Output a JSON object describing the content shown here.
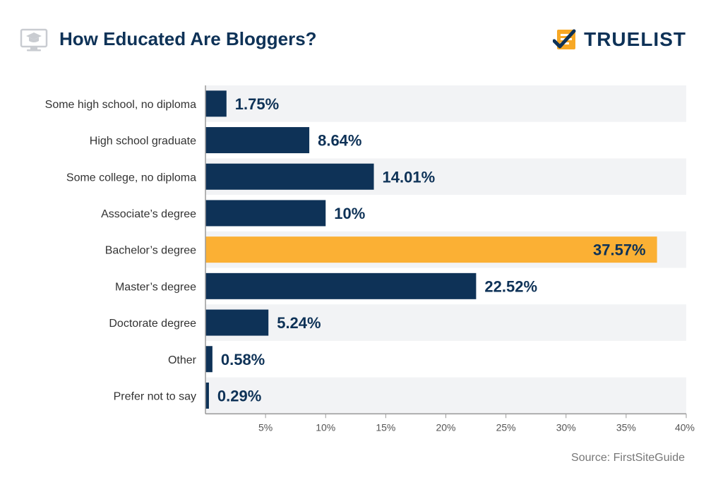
{
  "header": {
    "title": "How Educated Are Bloggers?",
    "title_icon": "graduation-monitor-icon",
    "brand": "TRUELIST",
    "brand_icon": "checklist-logo-icon"
  },
  "footer": {
    "source": "Source: FirstSiteGuide"
  },
  "colors": {
    "bar": "#0e3257",
    "highlight": "#fbb034",
    "band": "#f2f3f5",
    "brand_accent": "#f7a825"
  },
  "chart_data": {
    "type": "bar",
    "orientation": "horizontal",
    "title": "How Educated Are Bloggers?",
    "categories": [
      "Some high school, no diploma",
      "High school graduate",
      "Some college, no diploma",
      "Associate’s degree",
      "Bachelor’s degree",
      "Master’s degree",
      "Doctorate degree",
      "Other",
      "Prefer not to say"
    ],
    "values": [
      1.75,
      8.64,
      14.01,
      10,
      37.57,
      22.52,
      5.24,
      0.58,
      0.29
    ],
    "value_labels": [
      "1.75%",
      "8.64%",
      "14.01%",
      "10%",
      "37.57%",
      "22.52%",
      "5.24%",
      "0.58%",
      "0.29%"
    ],
    "highlight_index": 4,
    "xlim": [
      0,
      40
    ],
    "xticks": [
      5,
      10,
      15,
      20,
      25,
      30,
      35,
      40
    ],
    "xtick_labels": [
      "5%",
      "10%",
      "15%",
      "20%",
      "25%",
      "30%",
      "35%",
      "40%"
    ],
    "xlabel": "",
    "ylabel": "",
    "grid": false,
    "legend": "none",
    "source": "Source: FirstSiteGuide"
  }
}
